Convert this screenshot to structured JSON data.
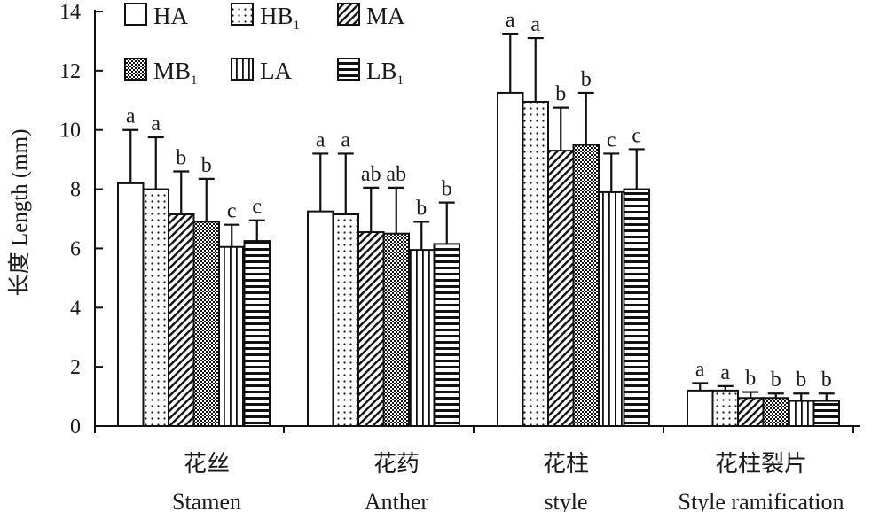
{
  "chart_data": {
    "type": "bar",
    "ylabel": "长度 Length (mm)",
    "ylim": [
      0,
      14
    ],
    "yticks": [
      0,
      2,
      4,
      6,
      8,
      10,
      12,
      14
    ],
    "grid": false,
    "legend_position": "top-left",
    "categories": [
      {
        "cn": "花丝",
        "en": "Stamen"
      },
      {
        "cn": "花药",
        "en": "Anther"
      },
      {
        "cn": "花柱",
        "en": "style"
      },
      {
        "cn": "花柱裂片",
        "en": "Style ramification"
      }
    ],
    "series": [
      {
        "name": "HA",
        "base": "HA",
        "sub": "",
        "pattern": "empty",
        "values": [
          8.2,
          7.25,
          11.25,
          1.2
        ],
        "errors": [
          1.8,
          1.95,
          2.0,
          0.25
        ],
        "labels": [
          "a",
          "a",
          "a",
          "a"
        ]
      },
      {
        "name": "HB1",
        "base": "HB",
        "sub": "1",
        "pattern": "dots",
        "values": [
          8.0,
          7.15,
          10.95,
          1.2
        ],
        "errors": [
          1.75,
          2.05,
          2.15,
          0.15
        ],
        "labels": [
          "a",
          "a",
          "a",
          "a"
        ]
      },
      {
        "name": "MA",
        "base": "MA",
        "sub": "",
        "pattern": "fwd-diag",
        "values": [
          7.15,
          6.55,
          9.3,
          0.95
        ],
        "errors": [
          1.45,
          1.5,
          1.45,
          0.2
        ],
        "labels": [
          "b",
          "ab",
          "b",
          "b"
        ]
      },
      {
        "name": "MB1",
        "base": "MB",
        "sub": "1",
        "pattern": "back-diag",
        "values": [
          6.9,
          6.5,
          9.5,
          0.95
        ],
        "errors": [
          1.45,
          1.55,
          1.75,
          0.15
        ],
        "labels": [
          "b",
          "ab",
          "b",
          "b"
        ]
      },
      {
        "name": "LA",
        "base": "LA",
        "sub": "",
        "pattern": "vertical",
        "values": [
          6.05,
          5.95,
          7.9,
          0.85
        ],
        "errors": [
          0.75,
          0.95,
          1.3,
          0.25
        ],
        "labels": [
          "c",
          "b",
          "c",
          "b"
        ]
      },
      {
        "name": "LB1",
        "base": "LB",
        "sub": "1",
        "pattern": "horizontal",
        "values": [
          6.25,
          6.15,
          8.0,
          0.85
        ],
        "errors": [
          0.7,
          1.4,
          1.35,
          0.25
        ],
        "labels": [
          "c",
          "b",
          "c",
          "b"
        ]
      }
    ]
  }
}
